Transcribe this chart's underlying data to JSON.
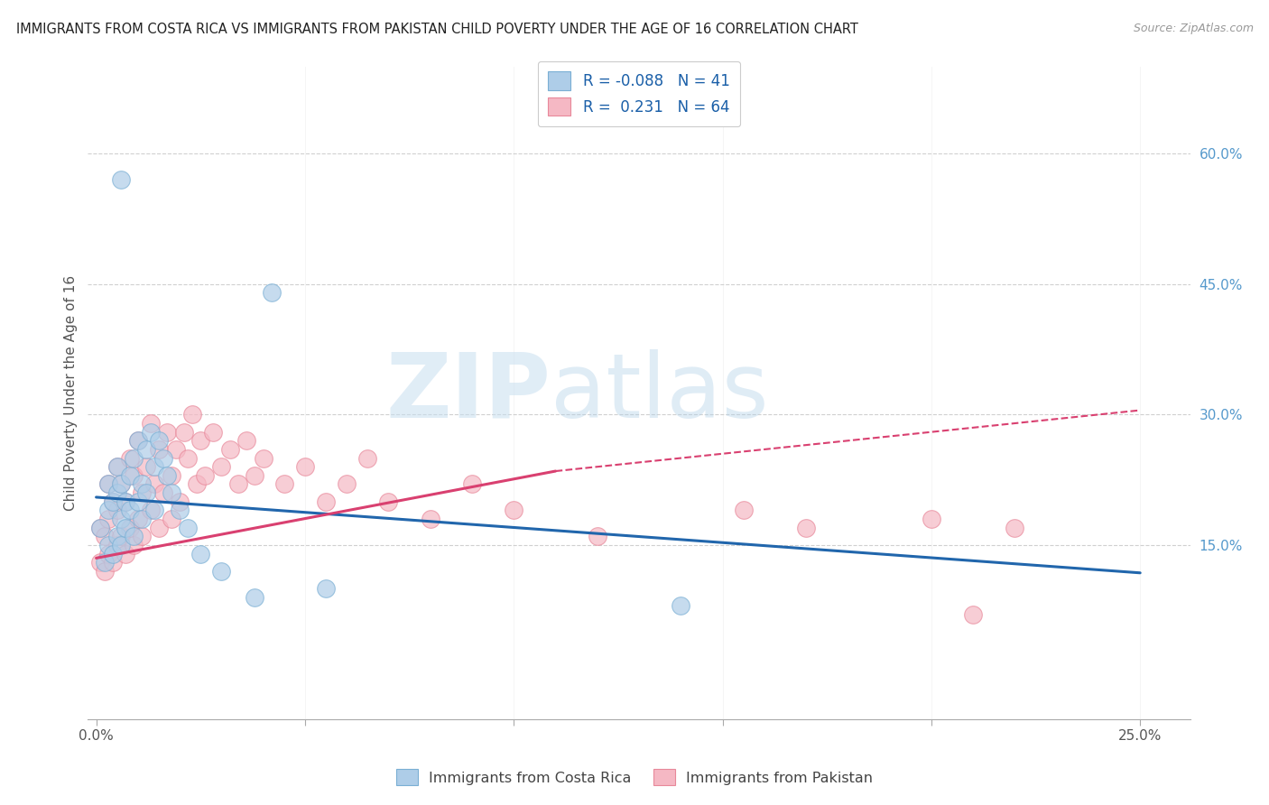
{
  "title": "IMMIGRANTS FROM COSTA RICA VS IMMIGRANTS FROM PAKISTAN CHILD POVERTY UNDER THE AGE OF 16 CORRELATION CHART",
  "source": "Source: ZipAtlas.com",
  "ylabel": "Child Poverty Under the Age of 16",
  "xlim": [
    -0.002,
    0.262
  ],
  "ylim": [
    -0.05,
    0.7
  ],
  "xticks": [
    0.0,
    0.05,
    0.1,
    0.15,
    0.2,
    0.25
  ],
  "xtick_labels": [
    "0.0%",
    "",
    "",
    "",
    "",
    "25.0%"
  ],
  "ytick_right": [
    0.15,
    0.3,
    0.45,
    0.6
  ],
  "ytick_right_labels": [
    "15.0%",
    "30.0%",
    "45.0%",
    "60.0%"
  ],
  "watermark_part1": "ZIP",
  "watermark_part2": "atlas",
  "legend_r1": "-0.088",
  "legend_n1": "41",
  "legend_r2": "0.231",
  "legend_n2": "64",
  "color_cr_fill": "#aecde8",
  "color_cr_edge": "#7aafd4",
  "color_pk_fill": "#f5b8c4",
  "color_pk_edge": "#e8889a",
  "color_cr_line": "#2166ac",
  "color_pk_line": "#d94070",
  "grid_color": "#d0d0d0",
  "cr_line_x0": 0.0,
  "cr_line_y0": 0.205,
  "cr_line_x1": 0.25,
  "cr_line_y1": 0.118,
  "pk_line_solid_x0": 0.0,
  "pk_line_solid_y0": 0.135,
  "pk_line_solid_x1": 0.11,
  "pk_line_solid_y1": 0.235,
  "pk_line_dash_x0": 0.11,
  "pk_line_dash_y0": 0.235,
  "pk_line_dash_x1": 0.25,
  "pk_line_dash_y1": 0.305,
  "costa_rica_x": [
    0.001,
    0.002,
    0.003,
    0.003,
    0.003,
    0.004,
    0.004,
    0.005,
    0.005,
    0.005,
    0.006,
    0.006,
    0.006,
    0.007,
    0.007,
    0.008,
    0.008,
    0.009,
    0.009,
    0.01,
    0.01,
    0.011,
    0.011,
    0.012,
    0.012,
    0.013,
    0.014,
    0.014,
    0.015,
    0.016,
    0.017,
    0.018,
    0.02,
    0.022,
    0.025,
    0.03,
    0.038,
    0.042,
    0.055,
    0.14,
    0.006
  ],
  "costa_rica_y": [
    0.17,
    0.13,
    0.15,
    0.19,
    0.22,
    0.14,
    0.2,
    0.16,
    0.21,
    0.24,
    0.18,
    0.22,
    0.15,
    0.2,
    0.17,
    0.23,
    0.19,
    0.16,
    0.25,
    0.2,
    0.27,
    0.22,
    0.18,
    0.26,
    0.21,
    0.28,
    0.24,
    0.19,
    0.27,
    0.25,
    0.23,
    0.21,
    0.19,
    0.17,
    0.14,
    0.12,
    0.09,
    0.44,
    0.1,
    0.08,
    0.57
  ],
  "pakistan_x": [
    0.001,
    0.001,
    0.002,
    0.002,
    0.003,
    0.003,
    0.003,
    0.004,
    0.004,
    0.005,
    0.005,
    0.005,
    0.006,
    0.006,
    0.007,
    0.007,
    0.008,
    0.008,
    0.009,
    0.009,
    0.01,
    0.01,
    0.011,
    0.011,
    0.012,
    0.013,
    0.013,
    0.014,
    0.015,
    0.015,
    0.016,
    0.017,
    0.018,
    0.018,
    0.019,
    0.02,
    0.021,
    0.022,
    0.023,
    0.024,
    0.025,
    0.026,
    0.028,
    0.03,
    0.032,
    0.034,
    0.036,
    0.038,
    0.04,
    0.045,
    0.05,
    0.055,
    0.06,
    0.065,
    0.07,
    0.08,
    0.09,
    0.1,
    0.12,
    0.155,
    0.17,
    0.2,
    0.21,
    0.22
  ],
  "pakistan_y": [
    0.13,
    0.17,
    0.12,
    0.16,
    0.14,
    0.18,
    0.22,
    0.13,
    0.2,
    0.15,
    0.19,
    0.24,
    0.16,
    0.22,
    0.14,
    0.2,
    0.17,
    0.25,
    0.15,
    0.23,
    0.18,
    0.27,
    0.21,
    0.16,
    0.24,
    0.19,
    0.29,
    0.22,
    0.17,
    0.26,
    0.21,
    0.28,
    0.23,
    0.18,
    0.26,
    0.2,
    0.28,
    0.25,
    0.3,
    0.22,
    0.27,
    0.23,
    0.28,
    0.24,
    0.26,
    0.22,
    0.27,
    0.23,
    0.25,
    0.22,
    0.24,
    0.2,
    0.22,
    0.25,
    0.2,
    0.18,
    0.22,
    0.19,
    0.16,
    0.19,
    0.17,
    0.18,
    0.07,
    0.17
  ]
}
